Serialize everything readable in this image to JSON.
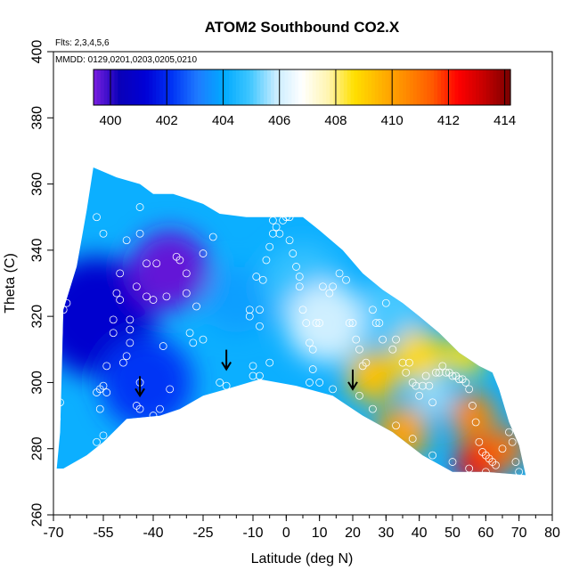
{
  "chart_data": {
    "type": "heatmap",
    "title": "ATOM2 Southbound CO2.X",
    "annotations": [
      "Flts: 2,3,4,5,6",
      "MMDD: 0129,0201,0203,0205,0210"
    ],
    "xlabel": "Latitude (deg N)",
    "ylabel": "Theta (C)",
    "xlim": [
      -70,
      80
    ],
    "ylim": [
      260,
      400
    ],
    "x_ticks": [
      -70,
      -55,
      -40,
      -25,
      -10,
      0,
      10,
      20,
      30,
      40,
      50,
      60,
      70,
      80
    ],
    "x_tick_labels": [
      "-70",
      "-55",
      "-40",
      "-25",
      "-10",
      "0",
      "10",
      "20",
      "30",
      "40",
      "50",
      "60",
      "70",
      "80"
    ],
    "y_ticks": [
      260,
      280,
      300,
      320,
      340,
      360,
      380,
      400
    ],
    "y_tick_labels": [
      "260",
      "280",
      "300",
      "320",
      "340",
      "360",
      "380",
      "400"
    ],
    "colorbar": {
      "range": [
        399.4,
        414.2
      ],
      "ticks": [
        400,
        402,
        404,
        406,
        408,
        410,
        412,
        414
      ],
      "tick_labels": [
        "400",
        "402",
        "404",
        "406",
        "408",
        "410",
        "412",
        "414"
      ],
      "colors": [
        "#7b1fe0",
        "#0a00b8",
        "#0000d6",
        "#0033f5",
        "#1e7bff",
        "#00aaff",
        "#3fc6ff",
        "#c8ecff",
        "#ffffff",
        "#fff5b0",
        "#ffe000",
        "#ffb400",
        "#ff8a00",
        "#ff5a00",
        "#ff0000",
        "#c40000",
        "#7a0000"
      ]
    },
    "field_boundary": [
      [
        -69,
        274
      ],
      [
        -68,
        285
      ],
      [
        -67,
        322
      ],
      [
        -63,
        335
      ],
      [
        -60,
        352
      ],
      [
        -58,
        365
      ],
      [
        -51,
        362
      ],
      [
        -44,
        360
      ],
      [
        -40,
        357
      ],
      [
        -34,
        357
      ],
      [
        -31,
        356
      ],
      [
        -25,
        354
      ],
      [
        -20,
        351
      ],
      [
        -12,
        350
      ],
      [
        -6,
        350
      ],
      [
        0,
        350
      ],
      [
        5,
        350
      ],
      [
        10,
        346
      ],
      [
        17,
        340
      ],
      [
        23,
        333
      ],
      [
        29,
        328
      ],
      [
        35,
        324
      ],
      [
        40,
        320
      ],
      [
        46,
        315
      ],
      [
        52,
        309
      ],
      [
        58,
        305
      ],
      [
        62,
        303
      ],
      [
        64,
        298
      ],
      [
        67,
        288
      ],
      [
        70,
        281
      ],
      [
        72,
        272
      ],
      [
        60,
        273
      ],
      [
        50,
        273
      ],
      [
        41,
        278
      ],
      [
        32,
        285
      ],
      [
        23,
        290
      ],
      [
        14,
        296
      ],
      [
        3,
        299
      ],
      [
        -8,
        301
      ],
      [
        -18,
        298
      ],
      [
        -25,
        296
      ],
      [
        -32,
        292
      ],
      [
        -38,
        290
      ],
      [
        -48,
        289
      ],
      [
        -55,
        282
      ],
      [
        -60,
        278
      ],
      [
        -67,
        274
      ]
    ],
    "field_blobs": [
      {
        "lat": -57,
        "theta": 320,
        "r": 18,
        "value": 401.0
      },
      {
        "lat": -35,
        "theta": 334,
        "r": 12,
        "value": 399.6
      },
      {
        "lat": -42,
        "theta": 300,
        "r": 14,
        "value": 402.2
      },
      {
        "lat": -15,
        "theta": 325,
        "r": 10,
        "value": 403.8
      },
      {
        "lat": 5,
        "theta": 330,
        "r": 12,
        "value": 404.8
      },
      {
        "lat": 12,
        "theta": 318,
        "r": 12,
        "value": 406.0
      },
      {
        "lat": 32,
        "theta": 322,
        "r": 10,
        "value": 405.0
      },
      {
        "lat": 26,
        "theta": 302,
        "r": 8,
        "value": 409.3
      },
      {
        "lat": 40,
        "theta": 308,
        "r": 8,
        "value": 408.8
      },
      {
        "lat": 54,
        "theta": 308,
        "r": 6,
        "value": 408.6
      },
      {
        "lat": 44,
        "theta": 296,
        "r": 6,
        "value": 405.5
      },
      {
        "lat": 35,
        "theta": 285,
        "r": 8,
        "value": 410.0
      },
      {
        "lat": 56,
        "theta": 290,
        "r": 7,
        "value": 410.6
      },
      {
        "lat": 58,
        "theta": 276,
        "r": 7,
        "value": 412.4
      },
      {
        "lat": 66,
        "theta": 280,
        "r": 6,
        "value": 411.0
      }
    ],
    "field_background_value": 404.2,
    "arrows": [
      {
        "lat": -44,
        "theta": 296
      },
      {
        "lat": -18,
        "theta": 304
      },
      {
        "lat": 20,
        "theta": 298
      }
    ],
    "observations": [
      [
        -69,
        289
      ],
      [
        -68,
        294
      ],
      [
        -67,
        322
      ],
      [
        -66,
        324
      ],
      [
        -56,
        298
      ],
      [
        -56,
        292
      ],
      [
        -55,
        284
      ],
      [
        -55,
        299
      ],
      [
        -57,
        297
      ],
      [
        -57,
        282
      ],
      [
        -55,
        280
      ],
      [
        -55,
        345
      ],
      [
        -57,
        350
      ],
      [
        -54,
        297
      ],
      [
        -54,
        305
      ],
      [
        -52,
        315
      ],
      [
        -52,
        319
      ],
      [
        -51,
        327
      ],
      [
        -50,
        325
      ],
      [
        -50,
        333
      ],
      [
        -48,
        343
      ],
      [
        -49,
        306
      ],
      [
        -48,
        308
      ],
      [
        -47,
        312
      ],
      [
        -47,
        316
      ],
      [
        -47,
        319
      ],
      [
        -45,
        329
      ],
      [
        -44,
        345
      ],
      [
        -44,
        353
      ],
      [
        -44,
        300
      ],
      [
        -45,
        293
      ],
      [
        -44,
        292
      ],
      [
        -42,
        336
      ],
      [
        -42,
        326
      ],
      [
        -40,
        325
      ],
      [
        -39,
        336
      ],
      [
        -37,
        311
      ],
      [
        -35,
        298
      ],
      [
        -36,
        326
      ],
      [
        -33,
        338
      ],
      [
        -32,
        337
      ],
      [
        -30,
        333
      ],
      [
        -30,
        327
      ],
      [
        -29,
        315
      ],
      [
        -28,
        312
      ],
      [
        -27,
        323
      ],
      [
        -25,
        339
      ],
      [
        -25,
        313
      ],
      [
        -22,
        344
      ],
      [
        -18,
        299
      ],
      [
        -10,
        305
      ],
      [
        -10,
        302
      ],
      [
        -11,
        320
      ],
      [
        -11,
        322
      ],
      [
        -8,
        317
      ],
      [
        -8,
        322
      ],
      [
        -8,
        302
      ],
      [
        -9,
        332
      ],
      [
        -7,
        331
      ],
      [
        -6,
        337
      ],
      [
        -5,
        341
      ],
      [
        -4,
        345
      ],
      [
        -4,
        349
      ],
      [
        -3,
        347
      ],
      [
        -2,
        345
      ],
      [
        -1,
        349
      ],
      [
        0,
        350
      ],
      [
        1,
        350
      ],
      [
        1,
        343
      ],
      [
        2,
        339
      ],
      [
        3,
        335
      ],
      [
        4,
        332
      ],
      [
        4,
        329
      ],
      [
        5,
        322
      ],
      [
        6,
        318
      ],
      [
        7,
        312
      ],
      [
        7,
        300
      ],
      [
        8,
        304
      ],
      [
        8,
        310
      ],
      [
        9,
        318
      ],
      [
        10,
        318
      ],
      [
        11,
        329
      ],
      [
        13,
        327
      ],
      [
        14,
        329
      ],
      [
        16,
        333
      ],
      [
        17,
        346
      ],
      [
        18,
        331
      ],
      [
        19,
        318
      ],
      [
        20,
        318
      ],
      [
        21,
        313
      ],
      [
        22,
        310
      ],
      [
        23,
        305
      ],
      [
        24,
        306
      ],
      [
        26,
        322
      ],
      [
        27,
        318
      ],
      [
        28,
        318
      ],
      [
        29,
        313
      ],
      [
        30,
        324
      ],
      [
        32,
        310
      ],
      [
        33,
        313
      ],
      [
        35,
        306
      ],
      [
        36,
        303
      ],
      [
        37,
        306
      ],
      [
        38,
        300
      ],
      [
        39,
        299
      ],
      [
        40,
        296
      ],
      [
        41,
        299
      ],
      [
        42,
        302
      ],
      [
        43,
        299
      ],
      [
        44,
        294
      ],
      [
        45,
        303
      ],
      [
        46,
        303
      ],
      [
        47,
        305
      ],
      [
        48,
        303
      ],
      [
        49,
        303
      ],
      [
        50,
        302
      ],
      [
        51,
        302
      ],
      [
        52,
        301
      ],
      [
        53,
        301
      ],
      [
        54,
        300
      ],
      [
        55,
        298
      ],
      [
        56,
        293
      ],
      [
        57,
        288
      ],
      [
        58,
        282
      ],
      [
        59,
        279
      ],
      [
        60,
        278
      ],
      [
        61,
        277
      ],
      [
        62,
        276
      ],
      [
        63,
        275
      ],
      [
        65,
        280
      ],
      [
        67,
        285
      ],
      [
        68,
        282
      ],
      [
        69,
        276
      ],
      [
        70,
        273
      ],
      [
        -45,
        287
      ],
      [
        -40,
        290
      ],
      [
        -38,
        292
      ],
      [
        -20,
        300
      ],
      [
        -15,
        296
      ],
      [
        -5,
        306
      ],
      [
        10,
        300
      ],
      [
        14,
        298
      ],
      [
        22,
        296
      ],
      [
        26,
        292
      ],
      [
        33,
        287
      ],
      [
        38,
        283
      ],
      [
        44,
        278
      ],
      [
        50,
        276
      ],
      [
        55,
        274
      ],
      [
        60,
        273
      ]
    ]
  }
}
